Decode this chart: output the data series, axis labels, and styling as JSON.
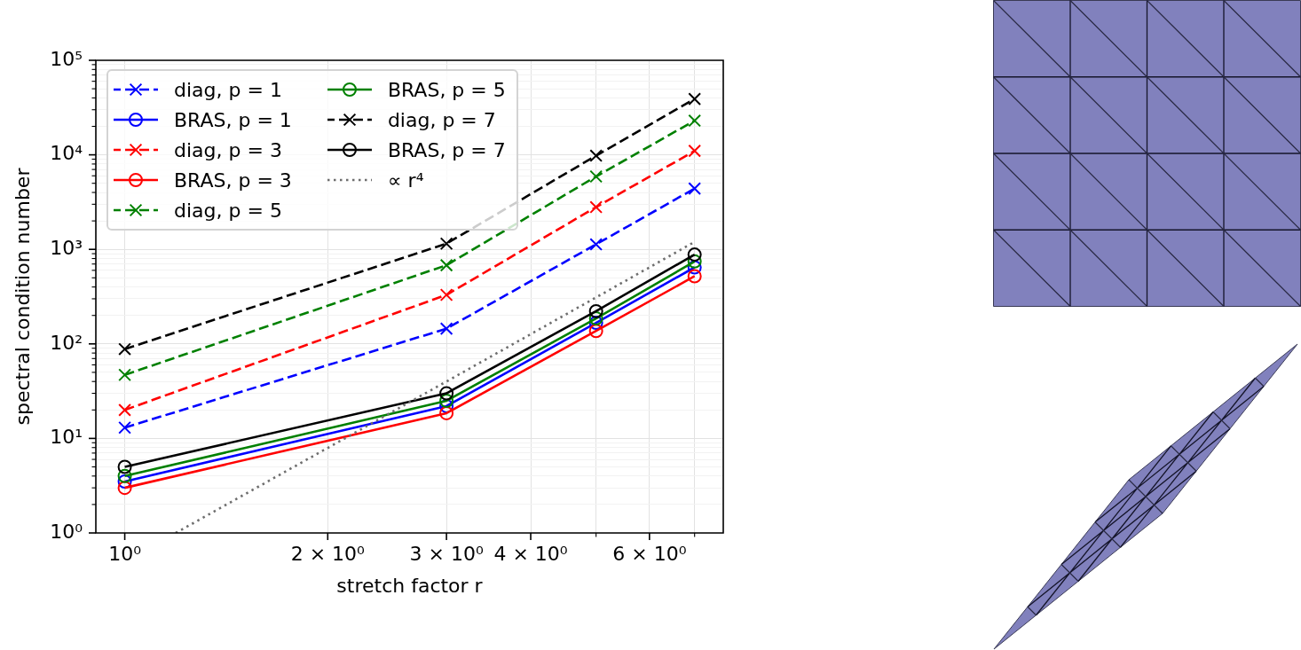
{
  "chart_data": {
    "type": "line",
    "xlabel": "stretch factor r",
    "ylabel": "spectral condition number",
    "x": [
      1,
      3,
      5,
      7
    ],
    "series": [
      {
        "name": "diag, p = 1",
        "color": "#0000ff",
        "marker": "cross",
        "line_style": "dashed",
        "values": [
          13,
          145,
          1130,
          4400
        ]
      },
      {
        "name": "BRAS, p = 1",
        "color": "#0000ff",
        "marker": "circle",
        "line_style": "solid",
        "values": [
          3.5,
          22,
          167,
          645
        ]
      },
      {
        "name": "diag, p = 3",
        "color": "#ff0000",
        "marker": "cross",
        "line_style": "dashed",
        "values": [
          20,
          330,
          2800,
          11000
        ]
      },
      {
        "name": "BRAS, p = 3",
        "color": "#ff0000",
        "marker": "circle",
        "line_style": "solid",
        "values": [
          3,
          18.5,
          137,
          520
        ]
      },
      {
        "name": "diag, p = 5",
        "color": "#008000",
        "marker": "cross",
        "line_style": "dashed",
        "values": [
          47,
          680,
          5900,
          23000
        ]
      },
      {
        "name": "BRAS, p = 5",
        "color": "#008000",
        "marker": "circle",
        "line_style": "solid",
        "values": [
          4,
          25,
          186,
          745
        ]
      },
      {
        "name": "diag, p = 7",
        "color": "#000000",
        "marker": "cross",
        "line_style": "dashed",
        "values": [
          88,
          1150,
          9800,
          39000
        ]
      },
      {
        "name": "BRAS, p = 7",
        "color": "#000000",
        "marker": "circle",
        "line_style": "solid",
        "values": [
          5,
          30,
          222,
          880
        ]
      },
      {
        "name": "∝ r⁴",
        "color": "#6e6e6e",
        "marker": "none",
        "line_style": "dotted",
        "x": [
          1.19,
          3,
          5,
          7
        ],
        "values": [
          1,
          40,
          310,
          1200
        ]
      }
    ],
    "xlim": [
      0.906,
      7.72
    ],
    "ylim": [
      1,
      100000
    ],
    "xticks": [
      {
        "value": 1,
        "label": "10⁰"
      },
      {
        "value": 2,
        "label": "2 × 10⁰"
      },
      {
        "value": 3,
        "label": "3 × 10⁰"
      },
      {
        "value": 4,
        "label": "4 × 10⁰"
      },
      {
        "value": 5,
        "label": null
      },
      {
        "value": 6,
        "label": "6 × 10⁰"
      },
      {
        "value": 7,
        "label": null
      }
    ],
    "yticks": [
      {
        "value": 1,
        "label": "10⁰"
      },
      {
        "value": 2,
        "label": null
      },
      {
        "value": 3,
        "label": null
      },
      {
        "value": 4,
        "label": null
      },
      {
        "value": 5,
        "label": null
      },
      {
        "value": 6,
        "label": null
      },
      {
        "value": 7,
        "label": null
      },
      {
        "value": 8,
        "label": null
      },
      {
        "value": 9,
        "label": null
      },
      {
        "value": 10,
        "label": "10¹"
      },
      {
        "value": 20,
        "label": null
      },
      {
        "value": 30,
        "label": null
      },
      {
        "value": 40,
        "label": null
      },
      {
        "value": 50,
        "label": null
      },
      {
        "value": 60,
        "label": null
      },
      {
        "value": 70,
        "label": null
      },
      {
        "value": 80,
        "label": null
      },
      {
        "value": 90,
        "label": null
      },
      {
        "value": 100,
        "label": "10²"
      },
      {
        "value": 200,
        "label": null
      },
      {
        "value": 300,
        "label": null
      },
      {
        "value": 400,
        "label": null
      },
      {
        "value": 500,
        "label": null
      },
      {
        "value": 600,
        "label": null
      },
      {
        "value": 700,
        "label": null
      },
      {
        "value": 800,
        "label": null
      },
      {
        "value": 900,
        "label": null
      },
      {
        "value": 1000,
        "label": "10³"
      },
      {
        "value": 2000,
        "label": null
      },
      {
        "value": 3000,
        "label": null
      },
      {
        "value": 4000,
        "label": null
      },
      {
        "value": 5000,
        "label": null
      },
      {
        "value": 6000,
        "label": null
      },
      {
        "value": 7000,
        "label": null
      },
      {
        "value": 8000,
        "label": null
      },
      {
        "value": 9000,
        "label": null
      },
      {
        "value": 10000,
        "label": "10⁴"
      },
      {
        "value": 20000,
        "label": null
      },
      {
        "value": 30000,
        "label": null
      },
      {
        "value": 40000,
        "label": null
      },
      {
        "value": 50000,
        "label": null
      },
      {
        "value": 60000,
        "label": null
      },
      {
        "value": 70000,
        "label": null
      },
      {
        "value": 80000,
        "label": null
      },
      {
        "value": 90000,
        "label": null
      },
      {
        "value": 100000,
        "label": "10⁵"
      }
    ],
    "log": "xy",
    "grid": true,
    "legend": "top left"
  }
}
